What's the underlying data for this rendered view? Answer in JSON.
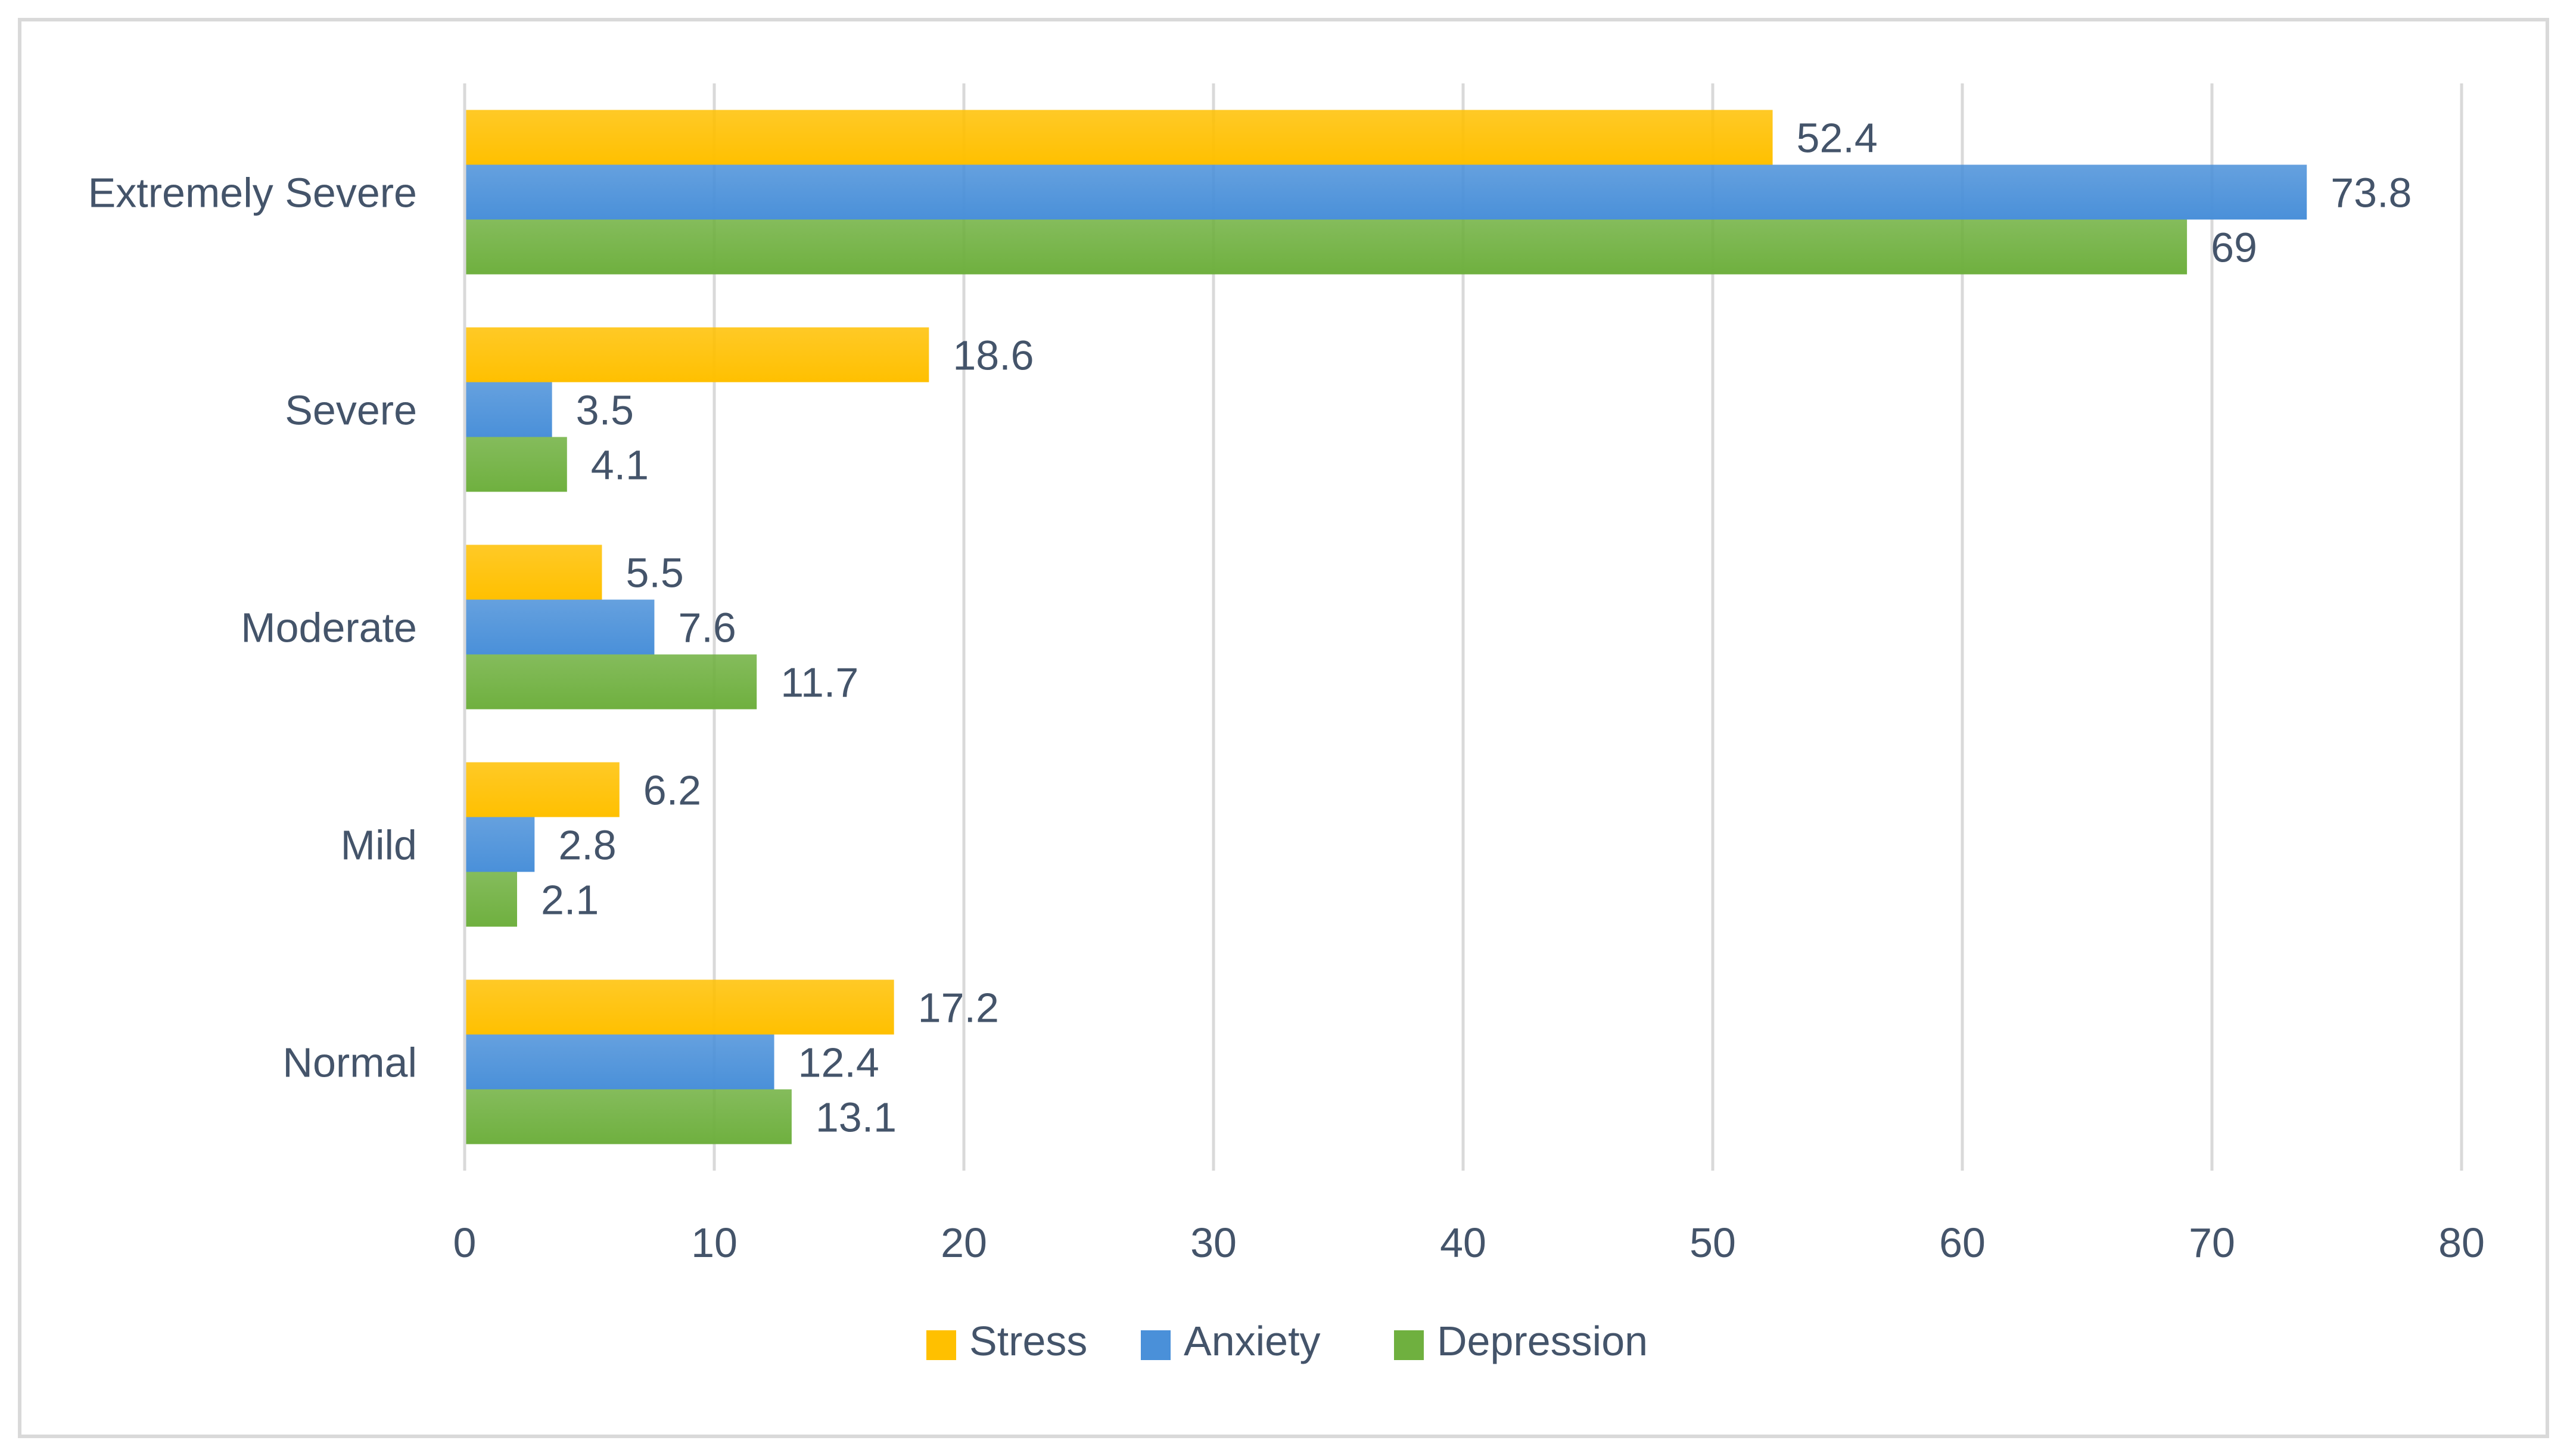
{
  "chart_data": {
    "type": "bar",
    "orientation": "horizontal",
    "title": "",
    "xlabel": "",
    "ylabel": "",
    "categories": [
      "Extremely Severe",
      "Severe",
      "Moderate",
      "Mild",
      "Normal"
    ],
    "series": [
      {
        "name": "Stress",
        "color": "#ffc000",
        "values": [
          52.4,
          18.6,
          5.5,
          6.2,
          17.2
        ]
      },
      {
        "name": "Anxiety",
        "color": "#4a90d9",
        "values": [
          73.8,
          3.5,
          7.6,
          2.8,
          12.4
        ]
      },
      {
        "name": "Depression",
        "color": "#6fb03f",
        "values": [
          69,
          4.1,
          11.7,
          2.1,
          13.1
        ]
      }
    ],
    "xlim": [
      0,
      80
    ],
    "xticks": [
      0,
      10,
      20,
      30,
      40,
      50,
      60,
      70,
      80
    ],
    "grid": true,
    "legend": "bottom",
    "data_labels": true
  }
}
